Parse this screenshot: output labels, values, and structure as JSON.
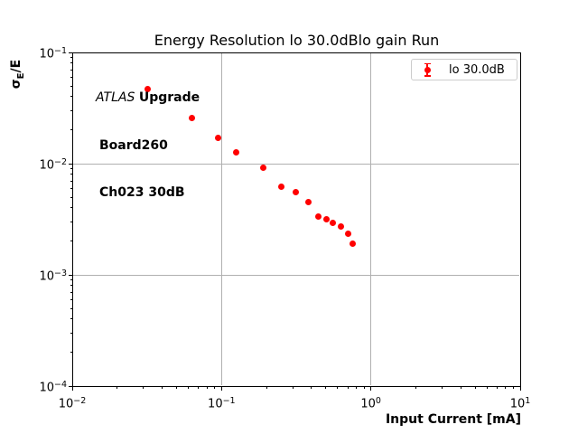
{
  "figure": {
    "background": "#ffffff"
  },
  "colors": {
    "marker": "#ff0000",
    "grid": "#b0b0b0",
    "frame": "#000000",
    "legend_border": "#cccccc",
    "text": "#000000"
  },
  "chart_data": {
    "type": "scatter",
    "title": "Energy Resolution lo 30.0dBlo gain Run",
    "xlabel": "Input Current [mA]",
    "ylabel": "σE/E",
    "ylabel_parts": {
      "sigma": "σ",
      "sub": "E",
      "rest": "/E"
    },
    "xscale": "log",
    "yscale": "log",
    "xlim": [
      0.01,
      10
    ],
    "ylim": [
      0.0001,
      0.1
    ],
    "grid": true,
    "legend": {
      "label": "lo 30.0dB",
      "position": "upper right",
      "marker": "errorbar-dot"
    },
    "x_ticks": [
      {
        "value": 0.01,
        "exp": "−2"
      },
      {
        "value": 0.1,
        "exp": "−1"
      },
      {
        "value": 1,
        "exp": "0"
      },
      {
        "value": 10,
        "exp": "1"
      }
    ],
    "y_ticks": [
      {
        "value": 0.1,
        "exp": "−1"
      },
      {
        "value": 0.01,
        "exp": "−2"
      },
      {
        "value": 0.001,
        "exp": "−3"
      },
      {
        "value": 0.0001,
        "exp": "−4"
      }
    ],
    "series": [
      {
        "name": "lo 30.0dB",
        "color": "#ff0000",
        "marker": "o",
        "x": [
          0.032,
          0.063,
          0.095,
          0.126,
          0.19,
          0.251,
          0.314,
          0.381,
          0.445,
          0.504,
          0.555,
          0.629,
          0.703,
          0.753
        ],
        "y": [
          0.0465,
          0.0256,
          0.017,
          0.0126,
          0.00925,
          0.0062,
          0.00554,
          0.00451,
          0.00337,
          0.00316,
          0.00294,
          0.00272,
          0.00234,
          0.00191
        ]
      }
    ],
    "annotation": {
      "line1_italic": "ATLAS",
      "line1_bold": "Upgrade",
      "line2": "Board260",
      "line3": "Ch023 30dB"
    }
  }
}
